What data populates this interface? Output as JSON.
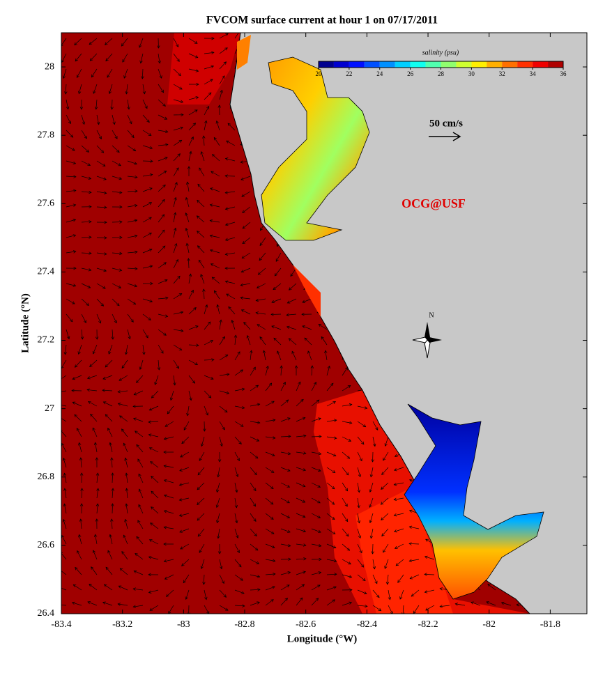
{
  "chart_data": {
    "type": "map",
    "title": "FVCOM surface current at hour 1 on 07/17/2011",
    "xlabel": "Longitude (°W)",
    "ylabel": "Latitude (°N)",
    "xlim": [
      -83.4,
      -81.68
    ],
    "ylim": [
      26.4,
      28.1
    ],
    "xticks": [
      -83.4,
      -83.2,
      -83,
      -82.8,
      -82.6,
      -82.4,
      -82.2,
      -82,
      -81.8
    ],
    "yticks": [
      26.4,
      26.6,
      26.8,
      27,
      27.2,
      27.4,
      27.6,
      27.8,
      28
    ],
    "colorbar": {
      "label": "salinity (psu)",
      "lim": [
        20,
        36
      ],
      "ticks": [
        20,
        22,
        24,
        26,
        28,
        30,
        32,
        34,
        36
      ],
      "colors": [
        "#00008f",
        "#0000cf",
        "#0010ff",
        "#0050ff",
        "#0090ff",
        "#00cfff",
        "#10ffef",
        "#50ffaf",
        "#90ff6f",
        "#cfff30",
        "#ffef00",
        "#ffaf00",
        "#ff7000",
        "#ff3000",
        "#ef0000",
        "#af0000"
      ]
    },
    "scale_arrow_label": "50 cm/s",
    "annotation": "OCG@USF",
    "compass_label": "N"
  }
}
